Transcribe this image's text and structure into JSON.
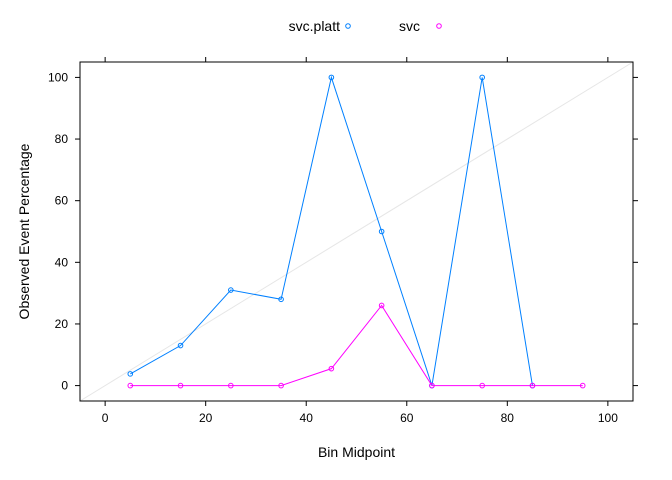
{
  "chart_data": {
    "type": "line",
    "title": "",
    "xlabel": "Bin Midpoint",
    "ylabel": "Observed Event Percentage",
    "xlim": [
      -5,
      105
    ],
    "ylim": [
      -5,
      105
    ],
    "xticks": [
      0,
      20,
      40,
      60,
      80,
      100
    ],
    "yticks": [
      0,
      20,
      40,
      60,
      80,
      100
    ],
    "legend_position": "top",
    "reference_line": {
      "from": [
        -5,
        -5
      ],
      "to": [
        105,
        105
      ],
      "color": "#e6e6e6"
    },
    "series": [
      {
        "name": "svc.platt",
        "color": "#0080ff",
        "x": [
          5,
          15,
          25,
          35,
          45,
          55,
          65,
          75,
          85
        ],
        "y": [
          3.8,
          13,
          31,
          28,
          100,
          50,
          0,
          100,
          0
        ]
      },
      {
        "name": "svc",
        "color": "#ff00ff",
        "x": [
          5,
          15,
          25,
          35,
          45,
          55,
          65,
          75,
          85,
          95
        ],
        "y": [
          0,
          0,
          0,
          0,
          5.5,
          26,
          0,
          0,
          0,
          0
        ]
      }
    ]
  }
}
